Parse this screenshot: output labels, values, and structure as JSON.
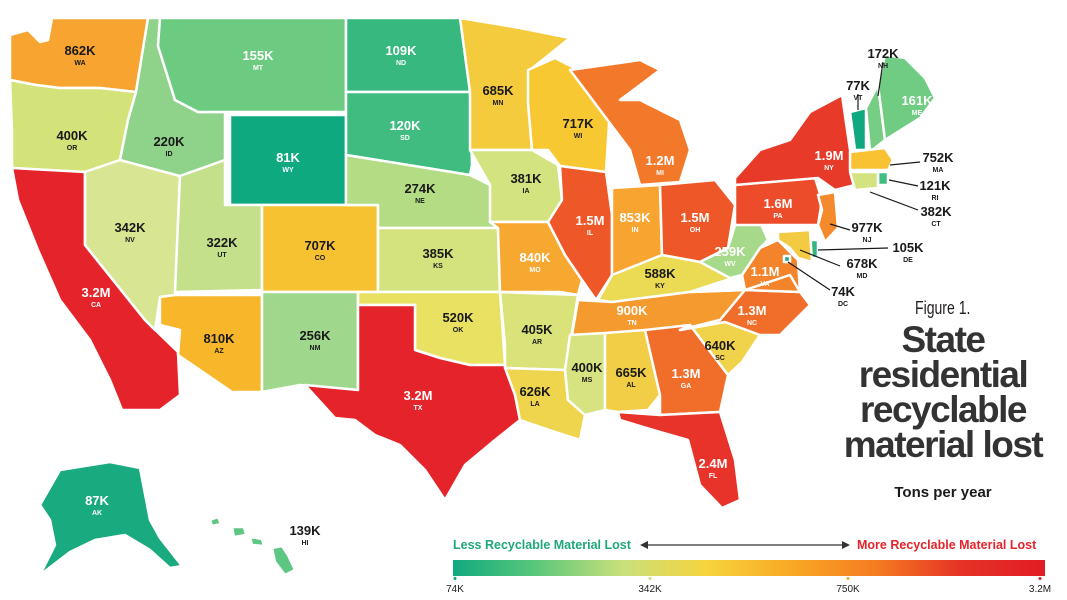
{
  "figure_label": "Figure 1.",
  "title": "State residential recyclable material lost",
  "subtitle": "Tons per year",
  "legend": {
    "left_label": "Less Recyclable Material Lost",
    "right_label": "More Recyclable Material Lost",
    "ticks": [
      "74K",
      "342K",
      "750K",
      "3.2M"
    ],
    "gradient_colors": [
      "#10a97f",
      "#5cc87a",
      "#c9e07b",
      "#f6d43d",
      "#f9a825",
      "#f57c20",
      "#e53226",
      "#e11d24"
    ]
  },
  "map_data": {
    "unit": "tons per year",
    "states": [
      {
        "abbr": "WA",
        "value": "862K",
        "color": "#f7a530"
      },
      {
        "abbr": "OR",
        "value": "400K",
        "color": "#d4e27a"
      },
      {
        "abbr": "CA",
        "value": "3.2M",
        "color": "#e5232a"
      },
      {
        "abbr": "NV",
        "value": "342K",
        "color": "#d8e693"
      },
      {
        "abbr": "ID",
        "value": "220K",
        "color": "#8fd28a"
      },
      {
        "abbr": "MT",
        "value": "155K",
        "color": "#6ccb81"
      },
      {
        "abbr": "WY",
        "value": "81K",
        "color": "#0fa980"
      },
      {
        "abbr": "UT",
        "value": "322K",
        "color": "#c4e08b"
      },
      {
        "abbr": "CO",
        "value": "707K",
        "color": "#f7c232"
      },
      {
        "abbr": "AZ",
        "value": "810K",
        "color": "#f8b62b"
      },
      {
        "abbr": "NM",
        "value": "256K",
        "color": "#9fd88d"
      },
      {
        "abbr": "ND",
        "value": "109K",
        "color": "#36b87f"
      },
      {
        "abbr": "SD",
        "value": "120K",
        "color": "#40bc80"
      },
      {
        "abbr": "NE",
        "value": "274K",
        "color": "#b3dc85"
      },
      {
        "abbr": "KS",
        "value": "385K",
        "color": "#d4e37e"
      },
      {
        "abbr": "OK",
        "value": "520K",
        "color": "#e9e161"
      },
      {
        "abbr": "TX",
        "value": "3.2M",
        "color": "#e5232a"
      },
      {
        "abbr": "MN",
        "value": "685K",
        "color": "#f5cb3e"
      },
      {
        "abbr": "IA",
        "value": "381K",
        "color": "#d2e37f"
      },
      {
        "abbr": "MO",
        "value": "840K",
        "color": "#f7a831"
      },
      {
        "abbr": "AR",
        "value": "405K",
        "color": "#dae37a"
      },
      {
        "abbr": "LA",
        "value": "626K",
        "color": "#efd54e"
      },
      {
        "abbr": "WI",
        "value": "717K",
        "color": "#f8c833"
      },
      {
        "abbr": "IL",
        "value": "1.5M",
        "color": "#ee5828"
      },
      {
        "abbr": "MI",
        "value": "1.2M",
        "color": "#f3792a"
      },
      {
        "abbr": "IN",
        "value": "853K",
        "color": "#f7a530"
      },
      {
        "abbr": "OH",
        "value": "1.5M",
        "color": "#ee5828"
      },
      {
        "abbr": "KY",
        "value": "588K",
        "color": "#ebda54"
      },
      {
        "abbr": "TN",
        "value": "900K",
        "color": "#f59a2e"
      },
      {
        "abbr": "MS",
        "value": "400K",
        "color": "#d6e380"
      },
      {
        "abbr": "AL",
        "value": "665K",
        "color": "#f2ce47"
      },
      {
        "abbr": "GA",
        "value": "1.3M",
        "color": "#f16d2a"
      },
      {
        "abbr": "FL",
        "value": "2.4M",
        "color": "#e8332a"
      },
      {
        "abbr": "SC",
        "value": "640K",
        "color": "#f0d24b"
      },
      {
        "abbr": "NC",
        "value": "1.3M",
        "color": "#f16d2a"
      },
      {
        "abbr": "VA",
        "value": "1.1M",
        "color": "#f3842b"
      },
      {
        "abbr": "WV",
        "value": "259K",
        "color": "#a6d98a"
      },
      {
        "abbr": "PA",
        "value": "1.6M",
        "color": "#ec4c29"
      },
      {
        "abbr": "NY",
        "value": "1.9M",
        "color": "#e83a29"
      },
      {
        "abbr": "VT",
        "value": "77K",
        "color": "#10a97f"
      },
      {
        "abbr": "NH",
        "value": "172K",
        "color": "#76cd84"
      },
      {
        "abbr": "ME",
        "value": "161K",
        "color": "#70cb83"
      },
      {
        "abbr": "MA",
        "value": "752K",
        "color": "#f8c233"
      },
      {
        "abbr": "RI",
        "value": "121K",
        "color": "#41bd81"
      },
      {
        "abbr": "CT",
        "value": "382K",
        "color": "#d2e37f"
      },
      {
        "abbr": "NJ",
        "value": "977K",
        "color": "#f48a2c"
      },
      {
        "abbr": "DE",
        "value": "105K",
        "color": "#33b77f"
      },
      {
        "abbr": "MD",
        "value": "678K",
        "color": "#f3ca42"
      },
      {
        "abbr": "DC",
        "value": "74K",
        "color": "#10a97f"
      },
      {
        "abbr": "AK",
        "value": "87K",
        "color": "#1aaa80"
      },
      {
        "abbr": "HI",
        "value": "139K",
        "color": "#5ec683"
      }
    ]
  }
}
